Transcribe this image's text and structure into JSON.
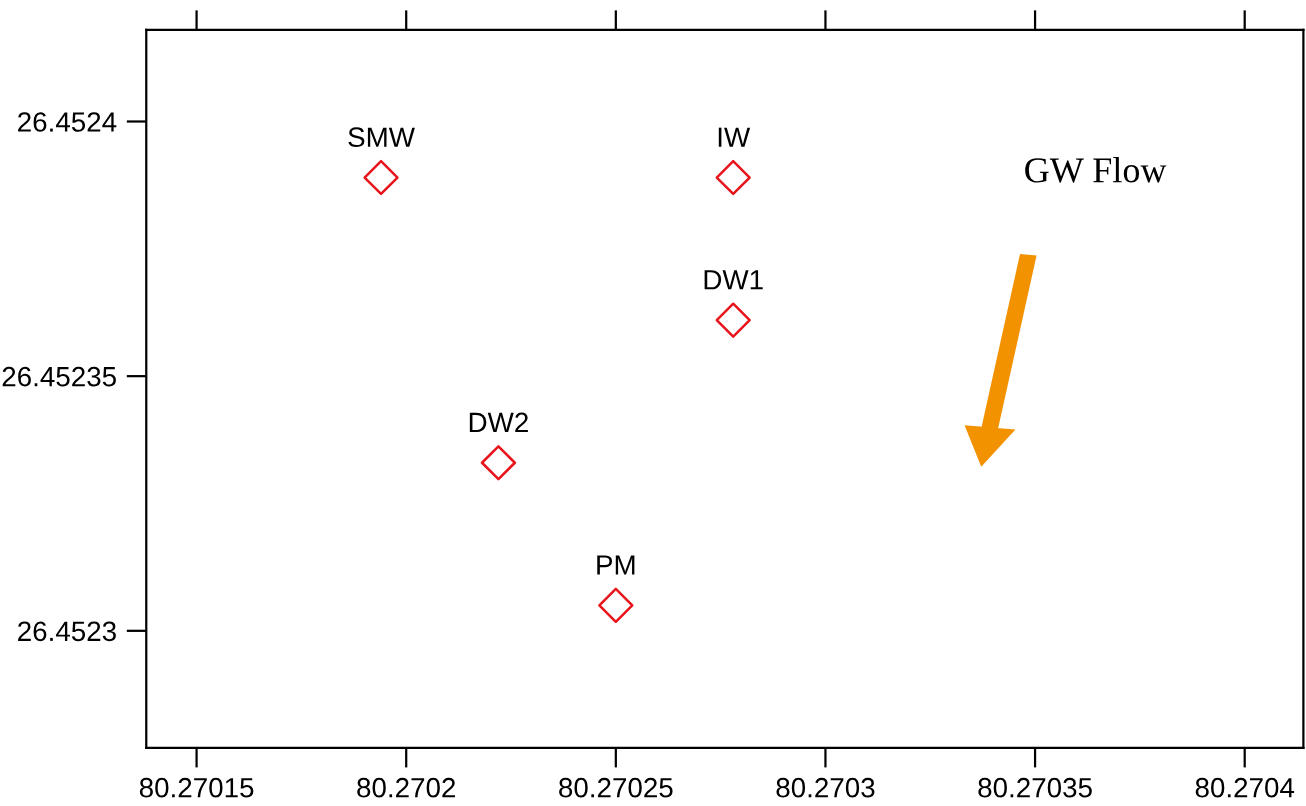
{
  "chart_data": {
    "type": "scatter",
    "x": [
      80.270194,
      80.270278,
      80.270278,
      80.270222,
      80.27025
    ],
    "values": [
      26.452389,
      26.452389,
      26.452361,
      26.452333,
      26.452305
    ],
    "color": "#e8141c",
    "marker": "diamond",
    "grid": false,
    "xlim": [
      80.270138,
      80.270414
    ],
    "ylim": [
      26.452277,
      26.452418
    ],
    "xticks": [
      80.27015,
      80.2702,
      80.27025,
      80.2703,
      80.27035,
      80.2704
    ],
    "yticks": [
      26.4523,
      26.45235,
      26.4524
    ],
    "annotations": [
      {
        "text": "SMW",
        "x": 80.270194,
        "y": 26.452389
      },
      {
        "text": "IW",
        "x": 80.270278,
        "y": 26.452389
      },
      {
        "text": "DW1",
        "x": 80.270278,
        "y": 26.452361
      },
      {
        "text": "DW2",
        "x": 80.270222,
        "y": 26.452333
      },
      {
        "text": "PM",
        "x": 80.27025,
        "y": 26.452305
      },
      "GW Flow"
    ]
  }
}
